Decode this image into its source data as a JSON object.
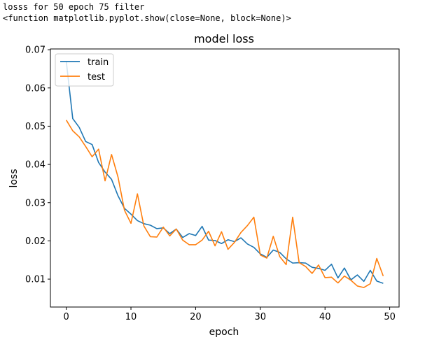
{
  "console": {
    "line1": "losss for 50 epoch 75 filter",
    "line2": "<function matplotlib.pyplot.show(close=None, block=None)>"
  },
  "chart_data": {
    "type": "line",
    "title": "model loss",
    "xlabel": "epoch",
    "ylabel": "loss",
    "xlim": [
      -2.45,
      51.45
    ],
    "ylim": [
      0.0027,
      0.0702
    ],
    "xticks": [
      0,
      10,
      20,
      30,
      40,
      50
    ],
    "yticks": [
      0.01,
      0.02,
      0.03,
      0.04,
      0.05,
      0.06,
      0.07
    ],
    "grid": false,
    "legend": "top-left",
    "x": [
      0,
      1,
      2,
      3,
      4,
      5,
      6,
      7,
      8,
      9,
      10,
      11,
      12,
      13,
      14,
      15,
      16,
      17,
      18,
      19,
      20,
      21,
      22,
      23,
      24,
      25,
      26,
      27,
      28,
      29,
      30,
      31,
      32,
      33,
      34,
      35,
      36,
      37,
      38,
      39,
      40,
      41,
      42,
      43,
      44,
      45,
      46,
      47,
      48,
      49
    ],
    "series": [
      {
        "name": "train",
        "color": "#1f77b4",
        "values": [
          0.067,
          0.052,
          0.0497,
          0.046,
          0.0452,
          0.0405,
          0.038,
          0.0361,
          0.0318,
          0.0285,
          0.027,
          0.0253,
          0.0245,
          0.0241,
          0.0232,
          0.0234,
          0.0219,
          0.0231,
          0.0209,
          0.0219,
          0.0214,
          0.0238,
          0.0202,
          0.0201,
          0.0193,
          0.0203,
          0.0198,
          0.0208,
          0.0192,
          0.0183,
          0.0166,
          0.0157,
          0.0176,
          0.017,
          0.0153,
          0.0142,
          0.0143,
          0.0142,
          0.0131,
          0.0128,
          0.0123,
          0.0139,
          0.0103,
          0.0129,
          0.0098,
          0.0111,
          0.0094,
          0.0123,
          0.0095,
          0.0089
        ]
      },
      {
        "name": "test",
        "color": "#ff7f0e",
        "values": [
          0.0516,
          0.0488,
          0.0472,
          0.0447,
          0.042,
          0.044,
          0.0357,
          0.0426,
          0.0367,
          0.028,
          0.0246,
          0.0323,
          0.0239,
          0.0211,
          0.021,
          0.0236,
          0.0213,
          0.0231,
          0.0202,
          0.019,
          0.019,
          0.0202,
          0.0225,
          0.0187,
          0.0224,
          0.0178,
          0.0196,
          0.0222,
          0.024,
          0.0262,
          0.0163,
          0.0155,
          0.0212,
          0.0159,
          0.0138,
          0.0262,
          0.0143,
          0.0133,
          0.0115,
          0.0137,
          0.0104,
          0.0105,
          0.009,
          0.0108,
          0.0097,
          0.0082,
          0.0078,
          0.0088,
          0.0154,
          0.0108
        ]
      }
    ]
  }
}
